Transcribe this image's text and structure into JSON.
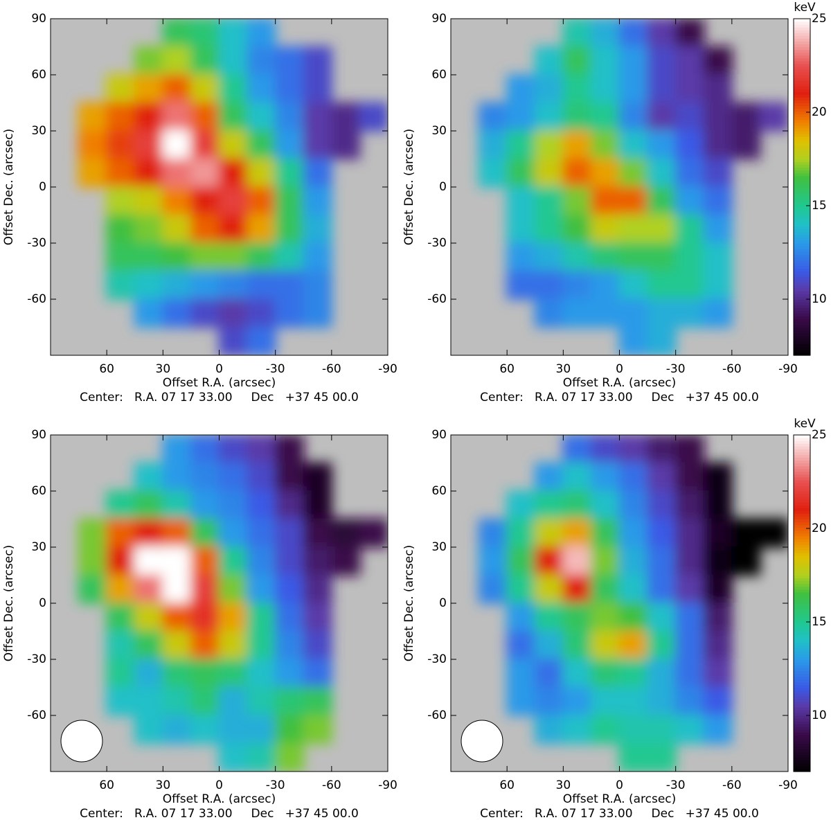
{
  "chart_data": [
    {
      "type": "heatmap",
      "x_label": "Offset R.A. (arcsec)",
      "y_label": "Offset Dec. (arcsec)",
      "note": "Center:   R.A. 07 17 33.00     Dec   +37 45 00.0",
      "xlim": [
        90,
        -90
      ],
      "ylim": [
        -90,
        90
      ],
      "xticks": [
        60,
        30,
        0,
        -30,
        -60,
        -90
      ],
      "yticks": [
        -60,
        -30,
        0,
        30,
        60,
        90
      ],
      "x": [
        82.5,
        67.5,
        52.5,
        37.5,
        22.5,
        7.5,
        -7.5,
        -22.5,
        -37.5,
        -52.5,
        -67.5,
        -82.5
      ],
      "y": [
        82.5,
        67.5,
        52.5,
        37.5,
        22.5,
        7.5,
        -7.5,
        -22.5,
        -37.5,
        -52.5,
        -67.5,
        -82.5
      ],
      "z": [
        [
          null,
          null,
          null,
          null,
          16,
          15.5,
          14,
          13,
          null,
          null,
          null,
          null
        ],
        [
          null,
          null,
          null,
          17,
          17.5,
          16,
          14,
          12.5,
          12,
          11,
          null,
          null
        ],
        [
          null,
          null,
          18,
          19,
          20,
          18,
          15,
          13,
          12,
          11,
          null,
          null
        ],
        [
          null,
          19,
          20,
          21,
          23,
          20,
          16,
          14,
          12.5,
          10.5,
          10,
          11
        ],
        [
          null,
          19.5,
          20.5,
          22,
          25,
          22,
          18,
          16,
          13,
          10.5,
          10,
          null
        ],
        [
          null,
          19,
          20,
          21,
          23,
          23.5,
          21,
          18,
          15,
          12,
          null,
          null
        ],
        [
          null,
          null,
          17.5,
          18,
          19.5,
          21,
          22,
          20,
          16,
          13,
          null,
          null
        ],
        [
          null,
          null,
          16.5,
          17,
          18,
          20,
          21,
          19,
          16,
          13.5,
          null,
          null
        ],
        [
          null,
          null,
          16,
          16,
          16.5,
          17,
          17,
          16,
          14.5,
          13,
          null,
          null
        ],
        [
          null,
          null,
          14.5,
          14,
          13.5,
          13,
          12.5,
          12,
          12,
          12.5,
          null,
          null
        ],
        [
          null,
          null,
          null,
          13,
          12,
          11,
          10.5,
          11,
          12,
          12.5,
          null,
          null
        ],
        [
          null,
          null,
          null,
          null,
          null,
          null,
          11,
          12,
          null,
          null,
          null,
          null
        ]
      ]
    },
    {
      "type": "heatmap",
      "x_label": "Offset R.A. (arcsec)",
      "y_label": "Offset Dec. (arcsec)",
      "note": "Center:   R.A. 07 17 33.00     Dec   +37 45 00.0",
      "xlim": [
        90,
        -90
      ],
      "ylim": [
        -90,
        90
      ],
      "xticks": [
        60,
        30,
        0,
        -30,
        -60,
        -90
      ],
      "yticks": [
        -60,
        -30,
        0,
        30,
        60,
        90
      ],
      "x": [
        82.5,
        67.5,
        52.5,
        37.5,
        22.5,
        7.5,
        -7.5,
        -22.5,
        -37.5,
        -52.5,
        -67.5,
        -82.5
      ],
      "y": [
        82.5,
        67.5,
        52.5,
        37.5,
        22.5,
        7.5,
        -7.5,
        -22.5,
        -37.5,
        -52.5,
        -67.5,
        -82.5
      ],
      "z": [
        [
          null,
          null,
          null,
          null,
          14.5,
          13.5,
          12,
          10.5,
          9,
          null,
          null,
          null
        ],
        [
          null,
          null,
          null,
          14,
          16,
          14,
          13,
          11,
          10.5,
          9,
          null,
          null
        ],
        [
          null,
          null,
          13,
          13.5,
          15,
          14,
          13,
          11,
          10.5,
          10,
          null,
          null
        ],
        [
          null,
          12.5,
          13,
          14,
          15.5,
          15,
          12.5,
          10.5,
          11,
          10,
          9.5,
          10.5
        ],
        [
          null,
          13.5,
          15,
          17.5,
          19,
          17,
          14,
          13,
          11.5,
          10,
          9.5,
          null
        ],
        [
          null,
          14,
          16,
          18,
          20,
          19,
          17,
          14,
          12,
          11,
          null,
          null
        ],
        [
          null,
          null,
          14,
          15,
          17,
          20,
          20,
          16,
          13,
          12,
          null,
          null
        ],
        [
          null,
          null,
          14,
          15,
          16.5,
          18,
          17.5,
          17.5,
          15,
          13,
          null,
          null
        ],
        [
          null,
          null,
          13,
          13.5,
          14.5,
          15.5,
          16,
          16,
          15,
          14,
          null,
          null
        ],
        [
          null,
          null,
          12,
          12,
          12.5,
          13,
          14,
          15,
          15,
          14,
          null,
          null
        ],
        [
          null,
          null,
          null,
          12.5,
          13,
          13,
          13,
          13.5,
          13.5,
          13,
          null,
          null
        ],
        [
          null,
          null,
          null,
          null,
          null,
          null,
          13,
          13.5,
          null,
          null,
          null,
          null
        ]
      ],
      "colorbar": {
        "label": "keV",
        "lim": [
          7,
          25
        ],
        "ticks": [
          10,
          15,
          20,
          25
        ]
      }
    },
    {
      "type": "heatmap",
      "x_label": "Offset R.A. (arcsec)",
      "y_label": "Offset Dec. (arcsec)",
      "note": "Center:   R.A. 07 17 33.00     Dec   +37 45 00.0",
      "xlim": [
        90,
        -90
      ],
      "ylim": [
        -90,
        90
      ],
      "xticks": [
        60,
        30,
        0,
        -30,
        -60,
        -90
      ],
      "yticks": [
        -60,
        -30,
        0,
        30,
        60,
        90
      ],
      "x": [
        82.5,
        67.5,
        52.5,
        37.5,
        22.5,
        7.5,
        -7.5,
        -22.5,
        -37.5,
        -52.5,
        -67.5,
        -82.5
      ],
      "y": [
        82.5,
        67.5,
        52.5,
        37.5,
        22.5,
        7.5,
        -7.5,
        -22.5,
        -37.5,
        -52.5,
        -67.5,
        -82.5
      ],
      "z": [
        [
          null,
          null,
          null,
          null,
          13,
          12,
          11,
          10.5,
          9,
          null,
          null,
          null
        ],
        [
          null,
          null,
          null,
          14,
          13,
          12.5,
          12,
          11,
          9,
          8,
          null,
          null
        ],
        [
          null,
          null,
          15,
          16,
          14.5,
          13,
          12.5,
          11.5,
          10,
          8,
          null,
          null
        ],
        [
          null,
          17,
          20,
          21,
          20,
          16,
          13,
          12,
          11,
          9,
          8.5,
          9
        ],
        [
          null,
          17,
          21,
          25,
          25,
          20,
          15,
          12.5,
          11,
          9.5,
          9,
          null
        ],
        [
          null,
          16,
          19,
          23,
          25,
          22,
          17,
          13,
          11.5,
          10,
          null,
          null
        ],
        [
          null,
          null,
          16,
          18,
          20,
          21.5,
          19,
          15,
          12,
          10.5,
          null,
          null
        ],
        [
          null,
          null,
          14.5,
          16,
          18,
          20,
          18,
          15,
          12.5,
          11,
          null,
          null
        ],
        [
          null,
          null,
          15,
          13.5,
          15.5,
          16,
          15.5,
          14,
          13,
          12,
          null,
          null
        ],
        [
          null,
          null,
          14,
          14,
          14.5,
          15.5,
          13.5,
          14.5,
          15.5,
          16,
          null,
          null
        ],
        [
          null,
          null,
          null,
          14,
          13.5,
          14,
          13.5,
          13.5,
          16.5,
          17,
          null,
          null
        ],
        [
          null,
          null,
          null,
          null,
          null,
          null,
          14,
          14.5,
          17,
          null,
          null,
          null
        ]
      ],
      "beam": true
    },
    {
      "type": "heatmap",
      "x_label": "Offset R.A. (arcsec)",
      "y_label": "Offset Dec. (arcsec)",
      "note": "Center:   R.A. 07 17 33.00     Dec   +37 45 00.0",
      "xlim": [
        90,
        -90
      ],
      "ylim": [
        -90,
        90
      ],
      "xticks": [
        60,
        30,
        0,
        -30,
        -60,
        -90
      ],
      "yticks": [
        -60,
        -30,
        0,
        30,
        60,
        90
      ],
      "x": [
        82.5,
        67.5,
        52.5,
        37.5,
        22.5,
        7.5,
        -7.5,
        -22.5,
        -37.5,
        -52.5,
        -67.5,
        -82.5
      ],
      "y": [
        82.5,
        67.5,
        52.5,
        37.5,
        22.5,
        7.5,
        -7.5,
        -22.5,
        -37.5,
        -52.5,
        -67.5,
        -82.5
      ],
      "z": [
        [
          null,
          null,
          null,
          null,
          12,
          11,
          10.5,
          9.5,
          9,
          null,
          null,
          null
        ],
        [
          null,
          null,
          null,
          13,
          14,
          13,
          12,
          10.5,
          9,
          7.5,
          null,
          null
        ],
        [
          null,
          null,
          14,
          15,
          15.5,
          14,
          12.5,
          11,
          9.5,
          7.5,
          null,
          null
        ],
        [
          null,
          12.5,
          15,
          18,
          19,
          16,
          13,
          11.5,
          10,
          8,
          7,
          7
        ],
        [
          null,
          13,
          16,
          21,
          24,
          17,
          13.5,
          12,
          10,
          7.5,
          7,
          null
        ],
        [
          null,
          12.5,
          15,
          18,
          21,
          16,
          14,
          12,
          10.5,
          8,
          null,
          null
        ],
        [
          null,
          null,
          13,
          15,
          16,
          17,
          16.5,
          14,
          12,
          9.5,
          null,
          null
        ],
        [
          null,
          null,
          12,
          13.5,
          15.5,
          18,
          19,
          15,
          12,
          10,
          null,
          null
        ],
        [
          null,
          null,
          13,
          12,
          14,
          15.5,
          15,
          13.5,
          12,
          10.5,
          null,
          null
        ],
        [
          null,
          null,
          13,
          12.5,
          13,
          14,
          14,
          13.5,
          12.5,
          11.5,
          null,
          null
        ],
        [
          null,
          null,
          null,
          13.5,
          14,
          15,
          14.5,
          14.5,
          14,
          13,
          null,
          null
        ],
        [
          null,
          null,
          null,
          null,
          null,
          null,
          15,
          15,
          null,
          null,
          null,
          null
        ]
      ],
      "colorbar": {
        "label": "keV",
        "lim": [
          7,
          25
        ],
        "ticks": [
          10,
          15,
          20,
          25
        ]
      },
      "beam": true
    }
  ]
}
